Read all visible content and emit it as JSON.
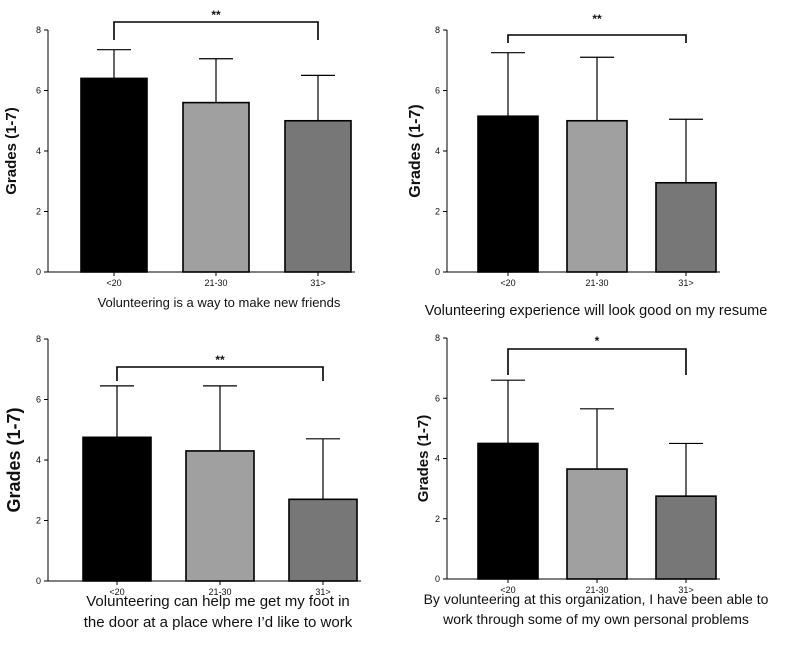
{
  "chart_data": [
    {
      "type": "bar",
      "categories": [
        "<20",
        "21-30",
        "31>"
      ],
      "values": [
        6.4,
        5.6,
        5.0
      ],
      "error": [
        0.95,
        1.45,
        1.5
      ],
      "ylabel": "Grades (1-7)",
      "xlabel": "Volunteering is a way to make new friends",
      "xlabel_lines": [
        "Volunteering is a way to make new friends"
      ],
      "ylim": [
        0,
        8
      ],
      "yticks": [
        "0",
        "2",
        "4",
        "6",
        "8"
      ],
      "significance": {
        "from": "<20",
        "to": "31>",
        "label": "**"
      },
      "colors": [
        "#000000",
        "#a0a0a0",
        "#777777"
      ]
    },
    {
      "type": "bar",
      "categories": [
        "<20",
        "21-30",
        "31>"
      ],
      "values": [
        5.15,
        5.0,
        2.95
      ],
      "error": [
        2.1,
        2.1,
        2.1
      ],
      "ylabel": "Grades (1-7)",
      "xlabel": "Volunteering experience will look good on my resume",
      "xlabel_lines": [
        "Volunteering experience will look good on my resume"
      ],
      "ylim": [
        0,
        8
      ],
      "yticks": [
        "0",
        "2",
        "4",
        "6",
        "8"
      ],
      "significance": {
        "from": "<20",
        "to": "31>",
        "label": "**"
      },
      "colors": [
        "#000000",
        "#a0a0a0",
        "#777777"
      ]
    },
    {
      "type": "bar",
      "categories": [
        "<20",
        "21-30",
        "31>"
      ],
      "values": [
        4.75,
        4.3,
        2.7
      ],
      "error": [
        1.7,
        2.15,
        2.0
      ],
      "ylabel": "Grades (1-7)",
      "xlabel": "Volunteering can help me get my foot in the door at a place where I’d like to work",
      "xlabel_lines": [
        "Volunteering can help me get my foot in",
        "the door at a place where I’d like to work"
      ],
      "ylim": [
        0,
        8
      ],
      "yticks": [
        "0",
        "2",
        "4",
        "6",
        "8"
      ],
      "significance": {
        "from": "<20",
        "to": "31>",
        "label": "**"
      },
      "colors": [
        "#000000",
        "#a0a0a0",
        "#777777"
      ]
    },
    {
      "type": "bar",
      "categories": [
        "<20",
        "21-30",
        "31>"
      ],
      "values": [
        4.5,
        3.65,
        2.75
      ],
      "error": [
        2.1,
        2.0,
        1.75
      ],
      "ylabel": "Grades (1-7)",
      "xlabel": "By volunteering at this organization, I have been able to work through some of my own personal problems",
      "xlabel_lines": [
        "By volunteering at this organization, I have been able to",
        "work through some of my own personal problems"
      ],
      "ylim": [
        0,
        8
      ],
      "yticks": [
        "0",
        "2",
        "4",
        "6",
        "8"
      ],
      "significance": {
        "from": "<20",
        "to": "31>",
        "label": "*"
      },
      "colors": [
        "#000000",
        "#a0a0a0",
        "#777777"
      ]
    }
  ]
}
